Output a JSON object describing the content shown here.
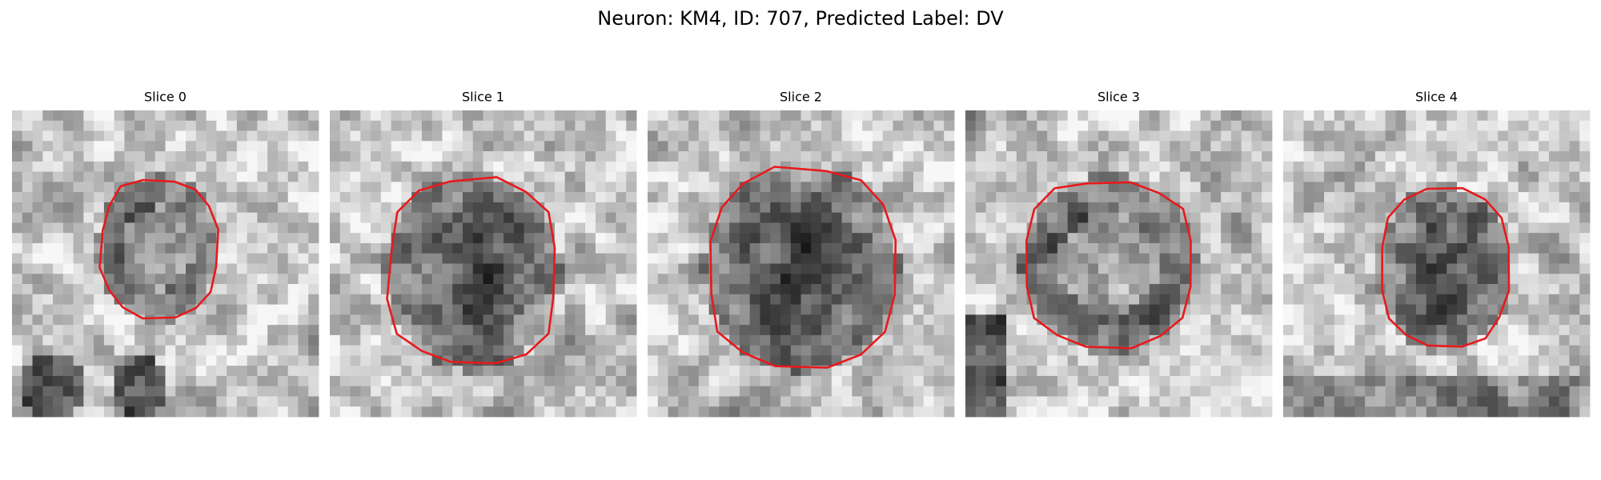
{
  "title": "Neuron: KM4, ID: 707, Predicted Label: DV",
  "panels": [
    {
      "title": "Slice 0"
    },
    {
      "title": "Slice 1"
    },
    {
      "title": "Slice 2"
    },
    {
      "title": "Slice 3"
    },
    {
      "title": "Slice 4"
    }
  ]
}
